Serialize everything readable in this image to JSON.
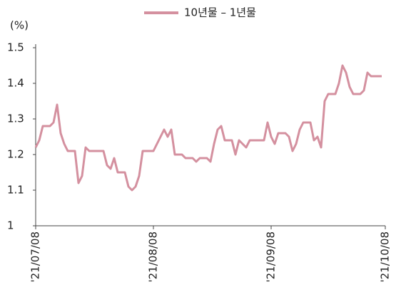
{
  "chart_data": {
    "type": "line",
    "y_unit": "(%)",
    "categories": [
      "'21/07/08",
      null,
      null,
      null,
      null,
      null,
      null,
      null,
      null,
      null,
      null,
      null,
      null,
      null,
      null,
      null,
      null,
      null,
      null,
      null,
      null,
      null,
      null,
      null,
      null,
      null,
      null,
      null,
      null,
      null,
      null,
      null,
      null,
      "'21/08/08",
      null,
      null,
      null,
      null,
      null,
      null,
      null,
      null,
      null,
      null,
      null,
      null,
      null,
      null,
      null,
      null,
      null,
      null,
      null,
      null,
      null,
      null,
      null,
      null,
      null,
      null,
      null,
      null,
      null,
      null,
      null,
      null,
      "'21/09/08",
      null,
      null,
      null,
      null,
      null,
      null,
      null,
      null,
      null,
      null,
      null,
      null,
      null,
      null,
      null,
      null,
      null,
      null,
      null,
      null,
      null,
      null,
      null,
      null,
      null,
      null,
      null,
      null,
      null,
      null,
      null,
      "'21/10/08"
    ],
    "series": [
      {
        "name": "10년물 – 1년물",
        "color": "#d4909f",
        "values": [
          1.22,
          1.24,
          1.28,
          1.28,
          1.28,
          1.29,
          1.34,
          1.26,
          1.23,
          1.21,
          1.21,
          1.21,
          1.12,
          1.14,
          1.22,
          1.21,
          1.21,
          1.21,
          1.21,
          1.21,
          1.17,
          1.16,
          1.19,
          1.15,
          1.15,
          1.15,
          1.11,
          1.1,
          1.11,
          1.14,
          1.21,
          1.21,
          1.21,
          1.21,
          1.23,
          1.25,
          1.27,
          1.25,
          1.27,
          1.2,
          1.2,
          1.2,
          1.19,
          1.19,
          1.19,
          1.18,
          1.19,
          1.19,
          1.19,
          1.18,
          1.23,
          1.27,
          1.28,
          1.24,
          1.24,
          1.24,
          1.2,
          1.24,
          1.23,
          1.22,
          1.24,
          1.24,
          1.24,
          1.24,
          1.24,
          1.29,
          1.25,
          1.23,
          1.26,
          1.26,
          1.26,
          1.25,
          1.21,
          1.23,
          1.27,
          1.29,
          1.29,
          1.29,
          1.24,
          1.25,
          1.22,
          1.35,
          1.37,
          1.37,
          1.37,
          1.4,
          1.45,
          1.43,
          1.39,
          1.37,
          1.37,
          1.37,
          1.38,
          1.43,
          1.42,
          1.42,
          1.42,
          1.42,
          null
        ]
      }
    ],
    "ylim": [
      1,
      1.5
    ],
    "yticks": [
      {
        "value": 1,
        "label": "1"
      },
      1.1,
      1.2,
      1.3,
      1.4,
      1.5
    ],
    "legend": "top"
  }
}
